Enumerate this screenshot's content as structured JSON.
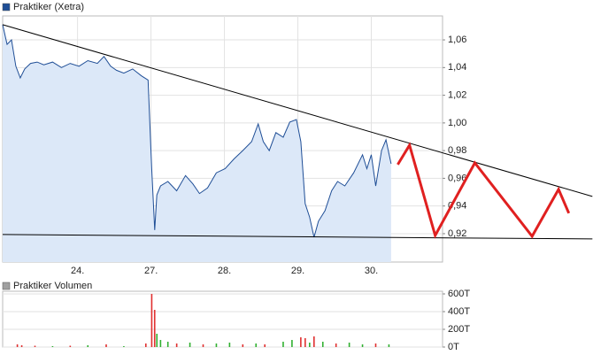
{
  "chart_data": [
    {
      "type": "line",
      "xlim": [
        -1.02,
        4.97
      ],
      "ylim": [
        0.8995,
        1.0773
      ],
      "xticks": [
        {
          "value": 0,
          "label": "24."
        },
        {
          "value": 1,
          "label": "27."
        },
        {
          "value": 2,
          "label": "28."
        },
        {
          "value": 3,
          "label": "29."
        },
        {
          "value": 4,
          "label": "30."
        }
      ],
      "yticks": [
        {
          "value": 0.92,
          "label": "0,92"
        },
        {
          "value": 0.94,
          "label": "0,94"
        },
        {
          "value": 0.96,
          "label": "0,96"
        },
        {
          "value": 0.98,
          "label": "0,98"
        },
        {
          "value": 1.0,
          "label": "1,00"
        },
        {
          "value": 1.02,
          "label": "1,02"
        },
        {
          "value": 1.04,
          "label": "1,04"
        },
        {
          "value": 1.06,
          "label": "1,06"
        }
      ],
      "grid": true,
      "series": [
        {
          "name": "Praktiker (Xetra)",
          "color": "#1f4e96",
          "fill_color": "#dce8f8",
          "x": [
            -1.02,
            -0.96,
            -0.9,
            -0.84,
            -0.78,
            -0.72,
            -0.64,
            -0.55,
            -0.46,
            -0.34,
            -0.22,
            -0.1,
            0.02,
            0.14,
            0.27,
            0.36,
            0.45,
            0.53,
            0.63,
            0.75,
            0.87,
            0.96,
            1.01,
            1.05,
            1.08,
            1.13,
            1.23,
            1.35,
            1.47,
            1.57,
            1.66,
            1.77,
            1.89,
            2.01,
            2.13,
            2.25,
            2.37,
            2.46,
            2.53,
            2.61,
            2.7,
            2.8,
            2.89,
            2.98,
            3.04,
            3.1,
            3.16,
            3.22,
            3.28,
            3.37,
            3.46,
            3.54,
            3.64,
            3.76,
            3.88,
            3.94,
            4.0,
            4.06,
            4.14,
            4.2,
            4.27
          ],
          "values": [
            1.071,
            1.0568,
            1.06,
            1.041,
            1.0325,
            1.039,
            1.043,
            1.044,
            1.042,
            1.044,
            1.04,
            1.043,
            1.041,
            1.045,
            1.043,
            1.048,
            1.041,
            1.038,
            1.036,
            1.039,
            1.034,
            1.031,
            0.967,
            0.9226,
            0.948,
            0.9545,
            0.9577,
            0.951,
            0.962,
            0.956,
            0.949,
            0.953,
            0.964,
            0.967,
            0.974,
            0.98,
            0.9865,
            0.9993,
            0.9865,
            0.98,
            0.993,
            0.9897,
            1.0006,
            1.0025,
            0.9865,
            0.9417,
            0.932,
            0.9174,
            0.929,
            0.9366,
            0.951,
            0.9577,
            0.9545,
            0.964,
            0.977,
            0.967,
            0.977,
            0.9545,
            0.98,
            0.9878,
            0.9705
          ]
        }
      ],
      "annotations": [
        {
          "color": "#000000",
          "width": 1,
          "x": [
            -1.02,
            7.01
          ],
          "values": [
            1.071,
            0.9469
          ]
        },
        {
          "color": "#000000",
          "width": 1,
          "x": [
            -1.02,
            7.01
          ],
          "values": [
            0.9194,
            0.9162
          ]
        },
        {
          "color": "#e02020",
          "width": 3,
          "x": [
            4.36,
            4.52,
            4.87,
            5.41,
            6.19,
            6.55,
            6.69
          ],
          "values": [
            0.9699,
            0.9839,
            0.9187,
            0.9711,
            0.9181,
            0.952,
            0.9348
          ]
        }
      ]
    },
    {
      "type": "bar",
      "xlim": [
        -1.02,
        4.97
      ],
      "ylim": [
        0,
        630000
      ],
      "yticks": [
        {
          "value": 0,
          "label": "0T"
        },
        {
          "value": 200000,
          "label": "200T"
        },
        {
          "value": 400000,
          "label": "400T"
        },
        {
          "value": 600000,
          "label": "600T"
        }
      ],
      "grid": true,
      "series": [
        {
          "name": "Praktiker Volumen",
          "color": "#a0a0a0",
          "x": [
            -0.82,
            -0.76,
            -0.58,
            -0.34,
            -0.1,
            0.14,
            0.39,
            0.63,
            0.93,
            1.01,
            1.05,
            1.08,
            1.13,
            1.23,
            1.35,
            1.53,
            1.71,
            1.89,
            2.07,
            2.25,
            2.43,
            2.55,
            2.8,
            2.92,
            3.04,
            3.1,
            3.16,
            3.22,
            3.34,
            3.52,
            3.7,
            3.88,
            4.06,
            4.24
          ],
          "values": [
            30000,
            20000,
            15000,
            10000,
            15000,
            20000,
            30000,
            10000,
            40000,
            600000,
            420000,
            150000,
            80000,
            60000,
            40000,
            50000,
            30000,
            40000,
            50000,
            30000,
            40000,
            30000,
            60000,
            80000,
            110000,
            100000,
            50000,
            120000,
            60000,
            40000,
            50000,
            30000,
            40000,
            30000
          ],
          "colors": [
            "#e03030",
            "#e03030",
            "#e03030",
            "#30b030",
            "#e03030",
            "#30b030",
            "#e03030",
            "#30b030",
            "#e03030",
            "#e03030",
            "#e03030",
            "#30b030",
            "#30b030",
            "#30b030",
            "#e03030",
            "#30b030",
            "#e03030",
            "#30b030",
            "#30b030",
            "#e03030",
            "#30b030",
            "#e03030",
            "#30b030",
            "#30b030",
            "#e03030",
            "#e03030",
            "#30b030",
            "#e03030",
            "#30b030",
            "#e03030",
            "#30b030",
            "#30b030",
            "#e03030",
            "#30b030"
          ]
        }
      ]
    }
  ]
}
